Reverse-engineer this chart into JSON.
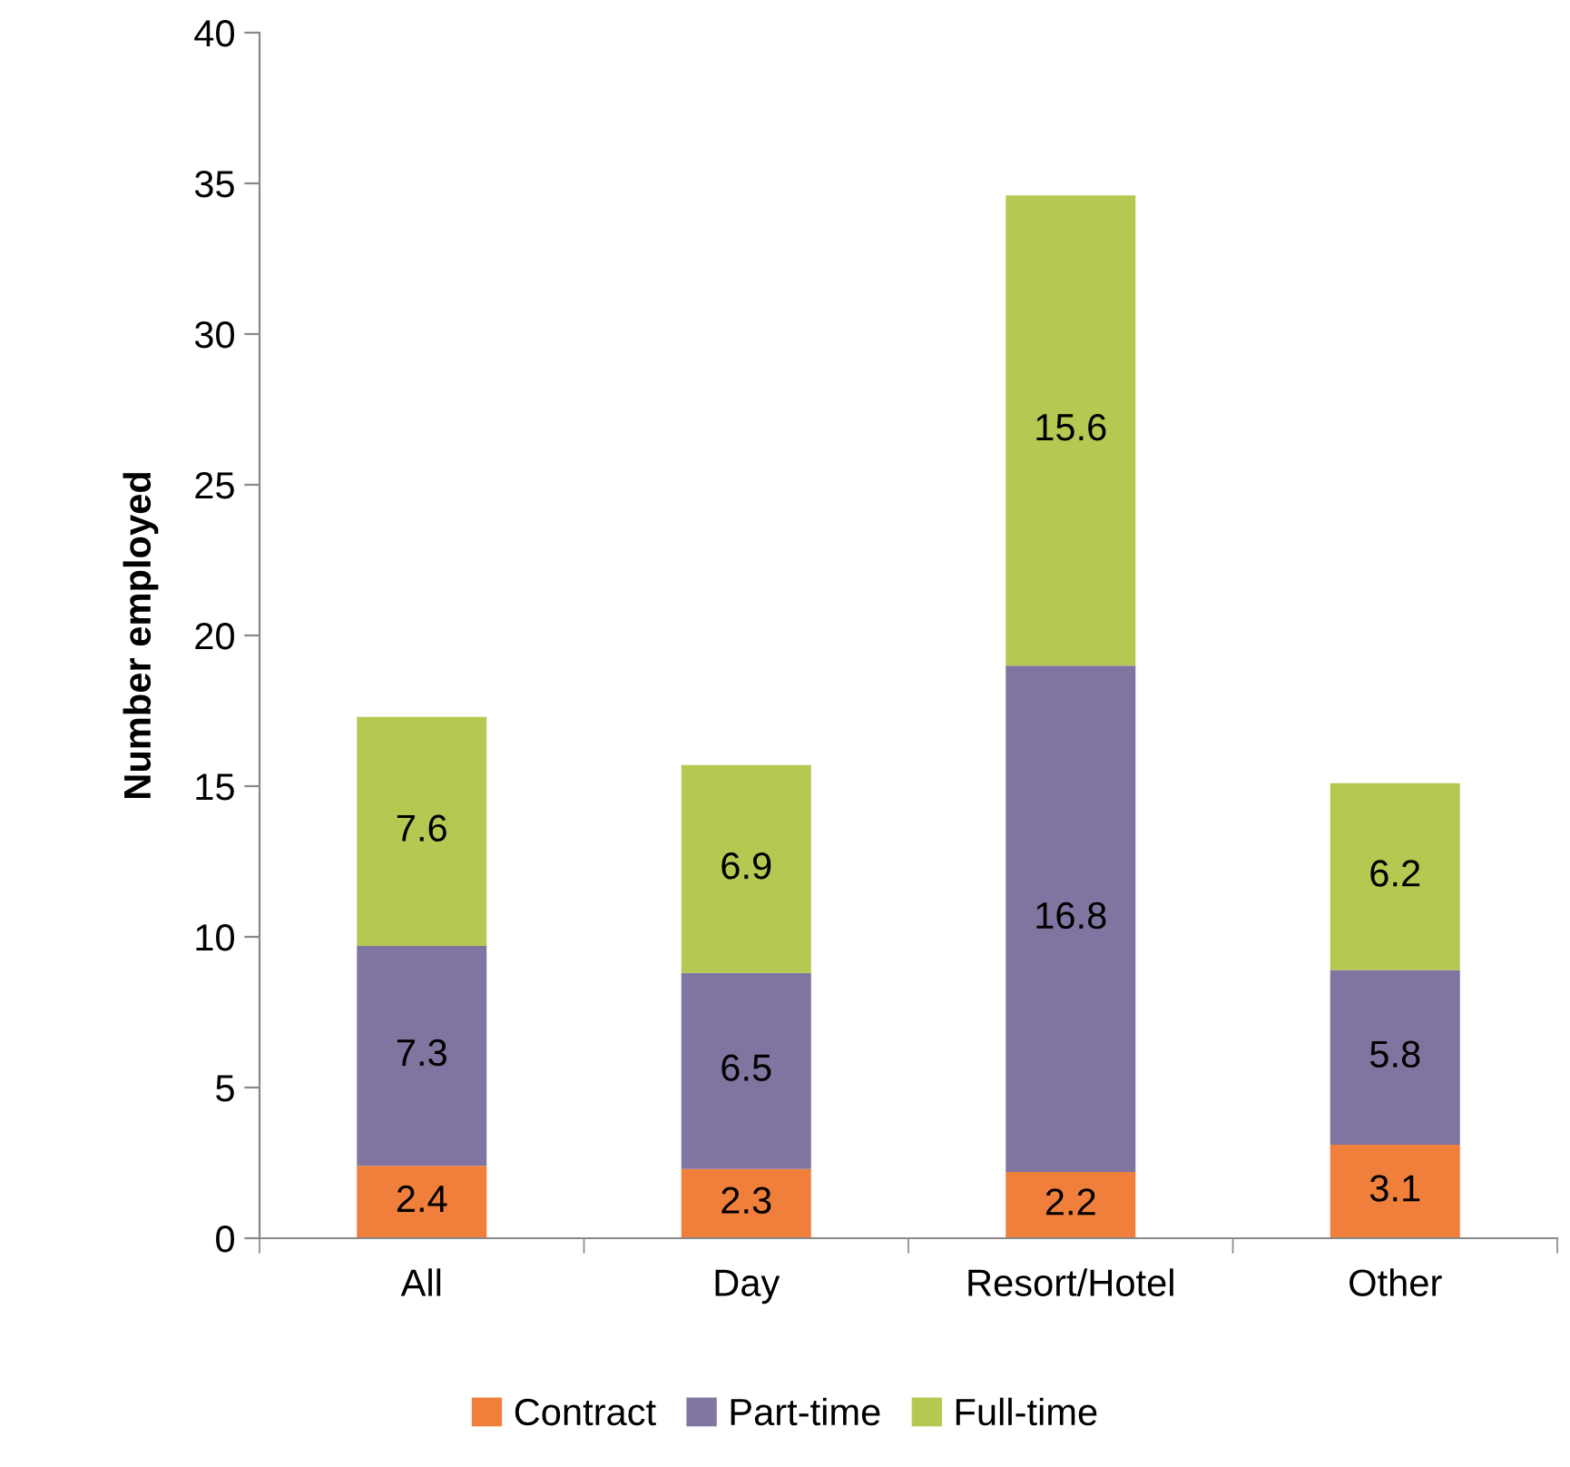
{
  "chart_data": {
    "type": "bar",
    "stacked": true,
    "ylabel": "Number employed",
    "categories": [
      "All",
      "Day",
      "Resort/Hotel",
      "Other"
    ],
    "series": [
      {
        "name": "Contract",
        "color": "#f07f3b",
        "values": [
          2.4,
          2.3,
          2.2,
          3.1
        ]
      },
      {
        "name": "Part-time",
        "color": "#7f75a0",
        "values": [
          7.3,
          6.5,
          16.8,
          5.8
        ]
      },
      {
        "name": "Full-time",
        "color": "#b5c851",
        "values": [
          7.6,
          6.9,
          15.6,
          6.2
        ]
      }
    ],
    "ylim": [
      0,
      40
    ],
    "yticks": [
      0,
      5,
      10,
      15,
      20,
      25,
      30,
      35,
      40
    ],
    "grid": false,
    "legend": "bottom",
    "data_labels": true
  }
}
